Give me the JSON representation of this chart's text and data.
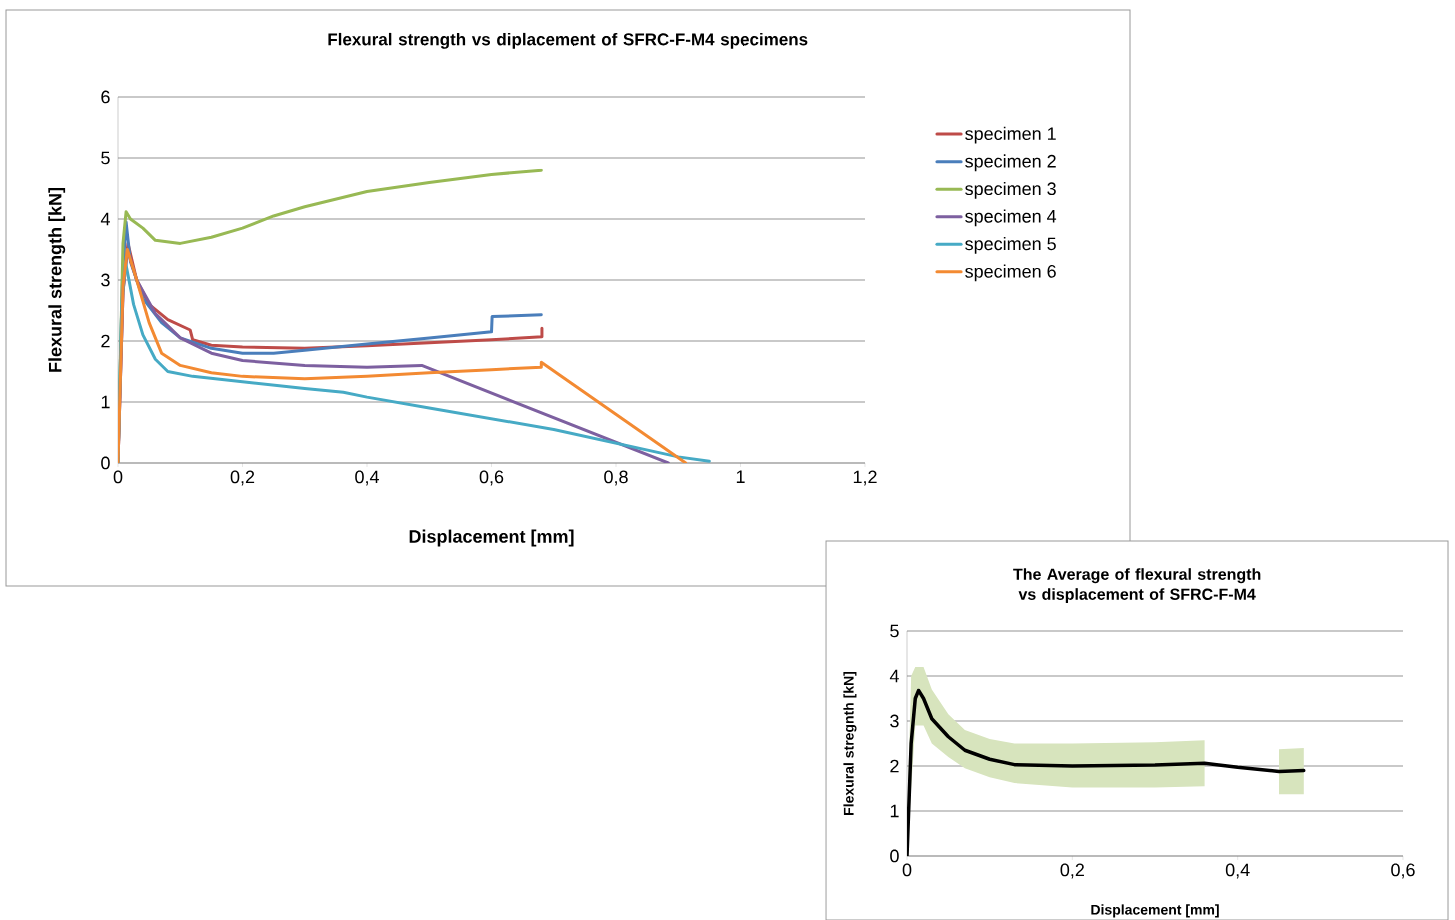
{
  "chart_data": [
    {
      "type": "line",
      "title": "Flexural strength vs diplacement of SFRC-F-M4 specimens",
      "xlabel": "Displacement [mm]",
      "ylabel": "Flexural strength [kN]",
      "xlim": [
        0,
        1.2
      ],
      "ylim": [
        0,
        6
      ],
      "xticks": [
        0,
        {
          "value": 0.2,
          "label": "0,2"
        },
        {
          "value": 0.4,
          "label": "0,4"
        },
        {
          "value": 0.6,
          "label": "0,6"
        },
        {
          "value": 0.8,
          "label": "0,8"
        },
        1,
        {
          "value": 1.2,
          "label": "1,2"
        }
      ],
      "yticks": [
        0,
        1,
        2,
        3,
        4,
        5,
        6
      ],
      "grid": "y",
      "legend": "right",
      "series": [
        {
          "name": "specimen 1",
          "color": "#be4b48",
          "x": [
            0,
            0.008,
            0.016,
            0.03,
            0.05,
            0.08,
            0.116,
            0.12,
            0.15,
            0.2,
            0.3,
            0.4,
            0.5,
            0.6,
            0.681,
            0.681
          ],
          "values": [
            0,
            2.8,
            3.6,
            3.0,
            2.6,
            2.35,
            2.18,
            2.02,
            1.93,
            1.9,
            1.88,
            1.92,
            1.97,
            2.02,
            2.07,
            2.21
          ]
        },
        {
          "name": "specimen 2",
          "color": "#4a7ebb",
          "x": [
            0,
            0.007,
            0.013,
            0.02,
            0.04,
            0.07,
            0.1,
            0.15,
            0.2,
            0.25,
            0.3,
            0.4,
            0.5,
            0.6,
            0.601,
            0.68
          ],
          "values": [
            0,
            3.0,
            3.95,
            3.3,
            2.7,
            2.3,
            2.05,
            1.88,
            1.8,
            1.8,
            1.85,
            1.95,
            2.05,
            2.15,
            2.4,
            2.43
          ]
        },
        {
          "name": "specimen 3",
          "color": "#98b954",
          "x": [
            0,
            0.008,
            0.013,
            0.02,
            0.04,
            0.06,
            0.1,
            0.15,
            0.2,
            0.25,
            0.3,
            0.4,
            0.5,
            0.6,
            0.68
          ],
          "values": [
            0,
            3.6,
            4.12,
            4.0,
            3.85,
            3.65,
            3.6,
            3.7,
            3.85,
            4.05,
            4.2,
            4.45,
            4.6,
            4.73,
            4.8
          ]
        },
        {
          "name": "specimen 4",
          "color": "#7d60a0",
          "x": [
            0,
            0.008,
            0.015,
            0.03,
            0.06,
            0.1,
            0.15,
            0.2,
            0.3,
            0.4,
            0.488,
            0.884
          ],
          "values": [
            0,
            2.8,
            3.5,
            3.0,
            2.45,
            2.05,
            1.8,
            1.68,
            1.6,
            1.57,
            1.6,
            0
          ]
        },
        {
          "name": "specimen 5",
          "color": "#46aac5",
          "x": [
            0,
            0.006,
            0.012,
            0.025,
            0.04,
            0.06,
            0.08,
            0.12,
            0.2,
            0.3,
            0.362,
            0.4,
            0.5,
            0.7,
            0.9,
            0.95
          ],
          "values": [
            0,
            2.6,
            3.3,
            2.6,
            2.1,
            1.7,
            1.5,
            1.42,
            1.33,
            1.22,
            1.16,
            1.08,
            0.9,
            0.55,
            0.1,
            0.03
          ]
        },
        {
          "name": "specimen 6",
          "color": "#f38a32",
          "x": [
            0,
            0.008,
            0.015,
            0.03,
            0.05,
            0.07,
            0.1,
            0.15,
            0.2,
            0.3,
            0.4,
            0.5,
            0.6,
            0.68,
            0.68,
            0.912
          ],
          "values": [
            0,
            2.9,
            3.5,
            3.0,
            2.3,
            1.8,
            1.6,
            1.48,
            1.42,
            1.38,
            1.42,
            1.48,
            1.53,
            1.57,
            1.65,
            0
          ]
        }
      ]
    },
    {
      "type": "line",
      "title": "The Average of flexural strength vs displacement of SFRC-F-M4",
      "xlabel": "Displacement [mm]",
      "ylabel": "Flexural stregnth [kN]",
      "xlim": [
        0,
        0.6
      ],
      "ylim": [
        0,
        5
      ],
      "xticks": [
        0,
        {
          "value": 0.2,
          "label": "0,2"
        },
        {
          "value": 0.4,
          "label": "0,4"
        },
        {
          "value": 0.6,
          "label": "0,6"
        }
      ],
      "yticks": [
        0,
        1,
        2,
        3,
        4,
        5
      ],
      "grid": "y",
      "series": [
        {
          "color": "#000000",
          "x": [
            0,
            0.005,
            0.01,
            0.014,
            0.02,
            0.03,
            0.05,
            0.07,
            0.1,
            0.13,
            0.2,
            0.3,
            0.36,
            0.4,
            0.45,
            0.48
          ],
          "values": [
            0,
            2.5,
            3.5,
            3.68,
            3.5,
            3.05,
            2.65,
            2.35,
            2.15,
            2.03,
            2.0,
            2.02,
            2.06,
            1.97,
            1.88,
            1.9
          ],
          "lower": [
            0,
            1.5,
            2.9,
            2.9,
            2.9,
            2.5,
            2.2,
            1.95,
            1.75,
            1.62,
            1.52,
            1.52,
            1.55,
            null,
            1.37,
            1.37
          ],
          "upper": [
            0.5,
            4.0,
            4.2,
            4.2,
            4.2,
            3.7,
            3.15,
            2.8,
            2.6,
            2.5,
            2.5,
            2.53,
            2.57,
            null,
            2.37,
            2.4
          ]
        }
      ]
    }
  ]
}
